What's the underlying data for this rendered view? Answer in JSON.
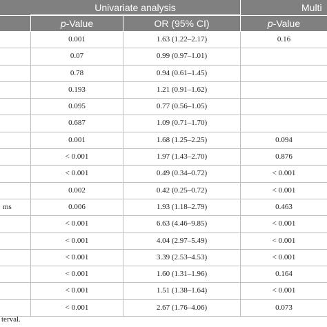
{
  "header": {
    "univariate": "Univariate analysis",
    "multivariate": "Multi",
    "p_italic": "p",
    "p_rest": "-Value",
    "or": "OR (95% CI)",
    "mp_italic": "p",
    "mp_rest": "-Value"
  },
  "rows": [
    {
      "label": "",
      "p": "0.001",
      "or": "1.63 (1.22–2.17)",
      "mp": "0.16"
    },
    {
      "label": "",
      "p": "0.07",
      "or": "0.99 (0.97–1.01)",
      "mp": ""
    },
    {
      "label": "",
      "p": "0.78",
      "or": "0.94 (0.61–1.45)",
      "mp": ""
    },
    {
      "label": "",
      "p": "0.193",
      "or": "1.21 (0.91–1.62)",
      "mp": ""
    },
    {
      "label": "",
      "p": "0.095",
      "or": "0.77 (0.56–1.05)",
      "mp": ""
    },
    {
      "label": "",
      "p": "0.687",
      "or": "1.09 (0.71–1.70)",
      "mp": ""
    },
    {
      "label": "",
      "p": "0.001",
      "or": "1.68 (1.25–2.25)",
      "mp": "0.094"
    },
    {
      "label": "",
      "p": "< 0.001",
      "or": "1.97 (1.43–2.70)",
      "mp": "0.876"
    },
    {
      "label": "",
      "p": "< 0.001",
      "or": "0.49 (0.34–0.72)",
      "mp": "< 0.001"
    },
    {
      "label": "",
      "p": "0.002",
      "or": "0.42 (0.25–0.72)",
      "mp": "< 0.001"
    },
    {
      "label": "ms",
      "p": "0.006",
      "or": "1.93 (1.18–2.79)",
      "mp": "0.463"
    },
    {
      "label": "",
      "p": "< 0.001",
      "or": "6.63 (4.46–9.85)",
      "mp": "< 0.001"
    },
    {
      "label": "",
      "p": "< 0.001",
      "or": "4.04 (2.97–5.49)",
      "mp": "< 0.001"
    },
    {
      "label": "",
      "p": "< 0.001",
      "or": "3.39 (2.53–4.53)",
      "mp": "< 0.001"
    },
    {
      "label": "",
      "p": "< 0.001",
      "or": "1.60 (1.31–1.96)",
      "mp": "0.164"
    },
    {
      "label": "",
      "p": "< 0.001",
      "or": "1.51 (1.38–1.64)",
      "mp": "< 0.001"
    },
    {
      "label": "",
      "p": "< 0.001",
      "or": "2.67 (1.76–4.06)",
      "mp": "0.073"
    }
  ],
  "footnote": "terval."
}
